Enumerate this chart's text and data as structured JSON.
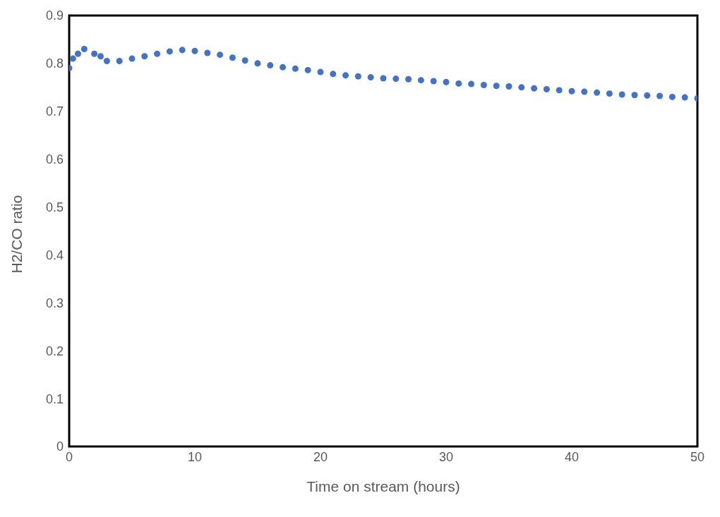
{
  "chart_data": {
    "type": "scatter",
    "xlabel": "Time on stream (hours)",
    "ylabel": "H2/CO ratio",
    "x": [
      0,
      0.3,
      0.7,
      1.2,
      2,
      2.5,
      3,
      4,
      5,
      6,
      7,
      8,
      9,
      10,
      11,
      12,
      13,
      14,
      15,
      16,
      17,
      18,
      19,
      20,
      21,
      22,
      23,
      24,
      25,
      26,
      27,
      28,
      29,
      30,
      31,
      32,
      33,
      34,
      35,
      36,
      37,
      38,
      39,
      40,
      41,
      42,
      43,
      44,
      45,
      46,
      47,
      48,
      49,
      50
    ],
    "series": [
      {
        "color": "#4472c4",
        "values": [
          0.79,
          0.81,
          0.82,
          0.83,
          0.82,
          0.815,
          0.805,
          0.805,
          0.81,
          0.815,
          0.82,
          0.825,
          0.828,
          0.826,
          0.822,
          0.818,
          0.812,
          0.806,
          0.8,
          0.796,
          0.792,
          0.789,
          0.786,
          0.782,
          0.778,
          0.775,
          0.773,
          0.771,
          0.769,
          0.768,
          0.767,
          0.765,
          0.763,
          0.761,
          0.758,
          0.757,
          0.755,
          0.753,
          0.752,
          0.75,
          0.748,
          0.746,
          0.744,
          0.742,
          0.741,
          0.739,
          0.737,
          0.735,
          0.734,
          0.733,
          0.732,
          0.73,
          0.729,
          0.727
        ]
      }
    ],
    "xlim": [
      0,
      50
    ],
    "xticks": [
      0,
      10,
      20,
      30,
      40,
      50
    ],
    "ylim": [
      0,
      0.9
    ],
    "yticks": [
      0,
      0.1,
      0.2,
      0.3,
      0.4,
      0.5,
      0.6,
      0.7,
      0.8,
      0.9
    ],
    "marker": "circle",
    "grid": false
  }
}
